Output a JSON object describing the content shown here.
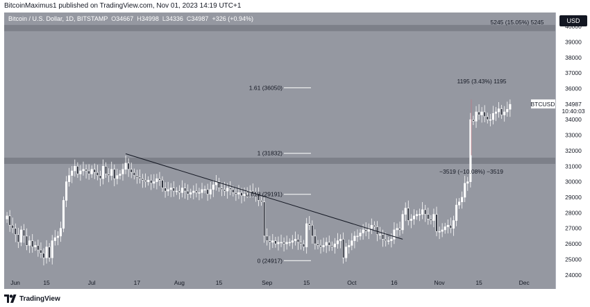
{
  "header": {
    "published_text": "BitcoinMaximus1 published on TradingView.com, Nov 01, 2023 14:19 UTC+1"
  },
  "legend": {
    "symbol_text": "Bitcoin / U.S. Dollar, 1D, BITSTAMP",
    "o_label": "O",
    "o_value": "34667",
    "h_label": "H",
    "h_value": "34998",
    "l_label": "L",
    "l_value": "34336",
    "c_label": "C",
    "c_value": "34987",
    "change": "+326 (+0.94%)"
  },
  "price_axis": {
    "currency": "USD",
    "ticks": [
      "40000",
      "39000",
      "38000",
      "37000",
      "36000",
      "35000",
      "34000",
      "33000",
      "32000",
      "31000",
      "30000",
      "29000",
      "28000",
      "27000",
      "26000",
      "25000",
      "24000"
    ],
    "symbol_tag": "BTCUSD",
    "last_price": "34987",
    "countdown": "10:40:03"
  },
  "footer": {
    "brand": "TradingView"
  },
  "colors": {
    "background": "#9598a1",
    "candle": "#ffffff",
    "band": "#7d8089",
    "top_band": "#7d8089"
  },
  "chart_data": {
    "type": "candlestick",
    "ylim": [
      23900,
      40900
    ],
    "x_ticks": [
      {
        "label": "Jun",
        "day": 0
      },
      {
        "label": "15",
        "day": 14
      },
      {
        "label": "Jul",
        "day": 30
      },
      {
        "label": "17",
        "day": 46
      },
      {
        "label": "Aug",
        "day": 61
      },
      {
        "label": "15",
        "day": 75
      },
      {
        "label": "Sep",
        "day": 92
      },
      {
        "label": "15",
        "day": 106
      },
      {
        "label": "Oct",
        "day": 122
      },
      {
        "label": "16",
        "day": 137
      },
      {
        "label": "Nov",
        "day": 153
      },
      {
        "label": "15",
        "day": 167
      },
      {
        "label": "Dec",
        "day": 183
      }
    ],
    "x_range_days": [
      -1,
      194
    ],
    "annotations": {
      "fib": [
        {
          "label": "1.61 (36050)",
          "price": 36050
        },
        {
          "label": "1 (31832)",
          "price": 31832
        },
        {
          "label": "0.618 (29191)",
          "price": 29191
        },
        {
          "label": "0 (24917)",
          "price": 24917
        }
      ],
      "measure_top": "5245 (15.05%) 5245",
      "measure_up": "1195 (3.43%) 1195",
      "measure_down": "−3519 (−10.08%) −3519"
    },
    "trendline": [
      {
        "day": 42,
        "price": 31800
      },
      {
        "day": 140,
        "price": 26300
      }
    ],
    "closes": [
      27800,
      27200,
      27000,
      26600,
      26100,
      26900,
      26500,
      25900,
      26200,
      25800,
      25900,
      25600,
      25400,
      25100,
      25800,
      25100,
      26200,
      26400,
      26500,
      27000,
      28800,
      30000,
      30400,
      30700,
      31000,
      30500,
      30700,
      30800,
      30700,
      30500,
      30800,
      30600,
      30400,
      30200,
      31000,
      30500,
      30400,
      30800,
      30200,
      30400,
      30500,
      30800,
      31200,
      30800,
      30600,
      30400,
      30300,
      30200,
      30100,
      30000,
      30100,
      29900,
      30000,
      30200,
      30100,
      29600,
      29400,
      29500,
      29600,
      29400,
      29400,
      29300,
      29600,
      29400,
      29200,
      29300,
      29400,
      29300,
      29300,
      29500,
      29500,
      29200,
      29500,
      29800,
      30000,
      29600,
      29500,
      29400,
      29600,
      29500,
      29300,
      29200,
      29300,
      29100,
      29200,
      29400,
      29400,
      29300,
      29200,
      28800,
      28700,
      26500,
      26200,
      26100,
      26200,
      26000,
      26100,
      26100,
      26000,
      26100,
      26100,
      26200,
      26300,
      26100,
      26000,
      25800,
      27300,
      27200,
      26500,
      26000,
      25900,
      25800,
      25900,
      26100,
      25900,
      25800,
      26000,
      26200,
      26300,
      25100,
      25800,
      25900,
      26200,
      26500,
      26500,
      26700,
      26900,
      26800,
      27000,
      27200,
      27100,
      26600,
      26600,
      26300,
      26200,
      26200,
      26300,
      26900,
      27000,
      26900,
      27900,
      28300,
      27500,
      27600,
      27800,
      27900,
      27900,
      28200,
      27900,
      27600,
      27500,
      27900,
      26800,
      26800,
      26900,
      27100,
      27200,
      27000,
      27500,
      28500,
      28700,
      29000,
      29900,
      30000,
      34000,
      33900,
      34500,
      34300,
      34500,
      34200,
      34000,
      34000,
      34400,
      34500,
      34700,
      34300,
      34500,
      34667,
      34987
    ]
  }
}
